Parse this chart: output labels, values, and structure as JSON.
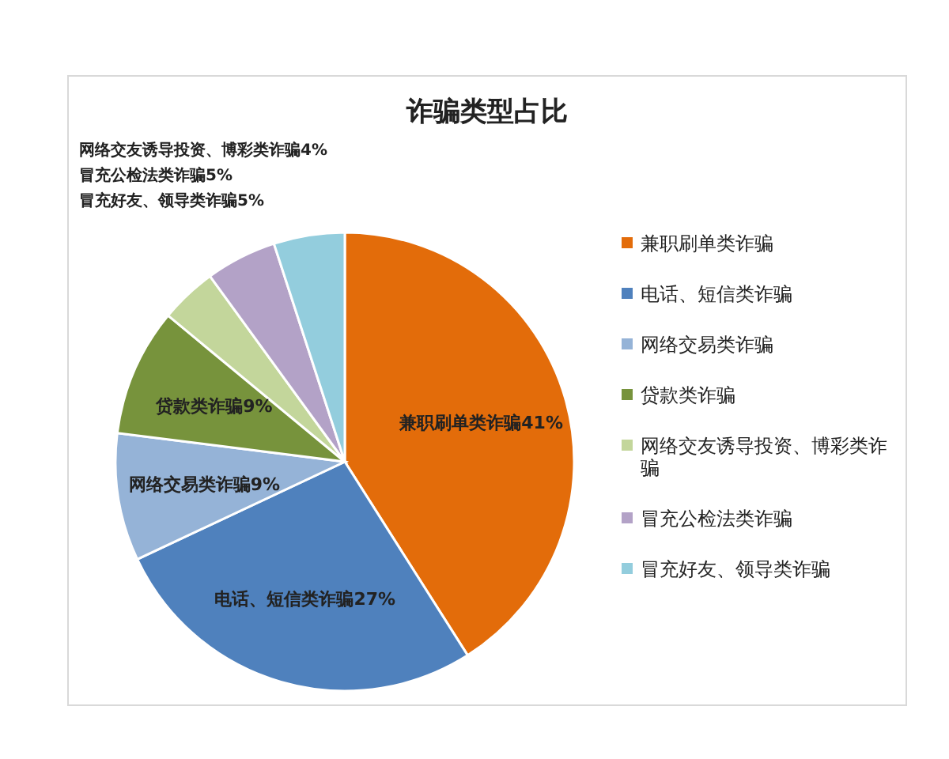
{
  "chart_data": {
    "type": "pie",
    "title": "诈骗类型占比",
    "categories": [
      "兼职刷单类诈骗",
      "电话、短信类诈骗",
      "网络交易类诈骗",
      "贷款类诈骗",
      "网络交友诱导投资、博彩类诈骗",
      "冒充公检法类诈骗",
      "冒充好友、领导类诈骗"
    ],
    "values": [
      41,
      27,
      9,
      9,
      4,
      5,
      5
    ],
    "colors": [
      "#e36c0a",
      "#4f81bd",
      "#95b3d7",
      "#77933c",
      "#c3d69b",
      "#b3a2c7",
      "#93cddd"
    ],
    "value_labels": [
      "41%",
      "27%",
      "9%",
      "9%",
      "4%",
      "5%",
      "5%"
    ],
    "legend": "right"
  }
}
